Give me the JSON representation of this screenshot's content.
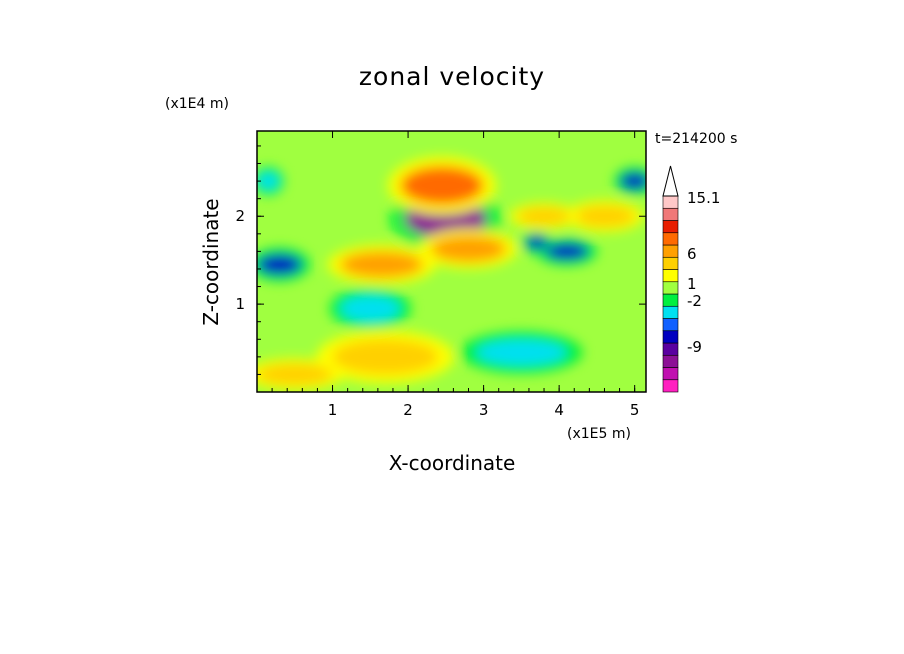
{
  "chart_data": {
    "type": "heatmap",
    "title": "zonal velocity",
    "xlabel": "X-coordinate",
    "ylabel": "Z-coordinate",
    "x_scale_label": "(x1E5 m)",
    "y_scale_label": "(x1E4 m)",
    "time_label": "t=214200 s",
    "xlim": [
      0,
      5.15
    ],
    "ylim": [
      0,
      2.97
    ],
    "x_ticks": [
      {
        "value": 1,
        "label": "1"
      },
      {
        "value": 2,
        "label": "2"
      },
      {
        "value": 3,
        "label": "3"
      },
      {
        "value": 4,
        "label": "4"
      },
      {
        "value": 5,
        "label": "5"
      }
    ],
    "y_ticks": [
      {
        "value": 1,
        "label": "1"
      },
      {
        "value": 2,
        "label": "2"
      }
    ],
    "colorbar": {
      "levels": [
        {
          "color": "#ff20c0"
        },
        {
          "color": "#c010b0"
        },
        {
          "color": "#8c1096"
        },
        {
          "color": "#5a00a0"
        },
        {
          "color": "#0000c0"
        },
        {
          "color": "#1060ff"
        },
        {
          "color": "#00e0f0"
        },
        {
          "color": "#00f040"
        },
        {
          "color": "#a0ff40"
        },
        {
          "color": "#ffff00"
        },
        {
          "color": "#ffd000"
        },
        {
          "color": "#ffa000"
        },
        {
          "color": "#ff6a00"
        },
        {
          "color": "#e81e00"
        },
        {
          "color": "#f07878"
        },
        {
          "color": "#ffc8c8"
        }
      ],
      "labels": [
        {
          "text": "15.1",
          "level": 15.1
        },
        {
          "text": "6",
          "level": 6
        },
        {
          "text": "1",
          "level": 1
        },
        {
          "text": "-2",
          "level": -2
        },
        {
          "text": "-9",
          "level": -9
        }
      ]
    },
    "field": {
      "background_level_color": "#a0ff40",
      "features": [
        {
          "x": 2.5,
          "z": 1.97,
          "rx": 0.55,
          "rz": 0.22,
          "value": -10
        },
        {
          "x": 2.45,
          "z": 2.35,
          "rx": 0.55,
          "rz": 0.22,
          "value": 6
        },
        {
          "x": 1.65,
          "z": 1.45,
          "rx": 0.55,
          "rz": 0.15,
          "value": 4
        },
        {
          "x": 2.8,
          "z": 1.63,
          "rx": 0.5,
          "rz": 0.15,
          "value": 5
        },
        {
          "x": 0.3,
          "z": 1.45,
          "rx": 0.3,
          "rz": 0.12,
          "value": -6
        },
        {
          "x": 4.1,
          "z": 1.6,
          "rx": 0.3,
          "rz": 0.1,
          "value": -7
        },
        {
          "x": 3.7,
          "z": 1.7,
          "rx": 0.15,
          "rz": 0.08,
          "value": -7
        },
        {
          "x": 5.0,
          "z": 2.4,
          "rx": 0.2,
          "rz": 0.1,
          "value": -6
        },
        {
          "x": 0.15,
          "z": 2.4,
          "rx": 0.15,
          "rz": 0.1,
          "value": -5
        },
        {
          "x": 4.6,
          "z": 2.0,
          "rx": 0.4,
          "rz": 0.12,
          "value": 3
        },
        {
          "x": 3.8,
          "z": 2.0,
          "rx": 0.35,
          "rz": 0.1,
          "value": 3
        },
        {
          "x": 1.7,
          "z": 0.4,
          "rx": 0.7,
          "rz": 0.2,
          "value": 2
        },
        {
          "x": 1.5,
          "z": 0.95,
          "rx": 0.4,
          "rz": 0.15,
          "value": -2
        },
        {
          "x": 3.5,
          "z": 0.45,
          "rx": 0.6,
          "rz": 0.15,
          "value": -2
        },
        {
          "x": 0.5,
          "z": 0.2,
          "rx": 0.5,
          "rz": 0.12,
          "value": 2
        }
      ]
    }
  }
}
